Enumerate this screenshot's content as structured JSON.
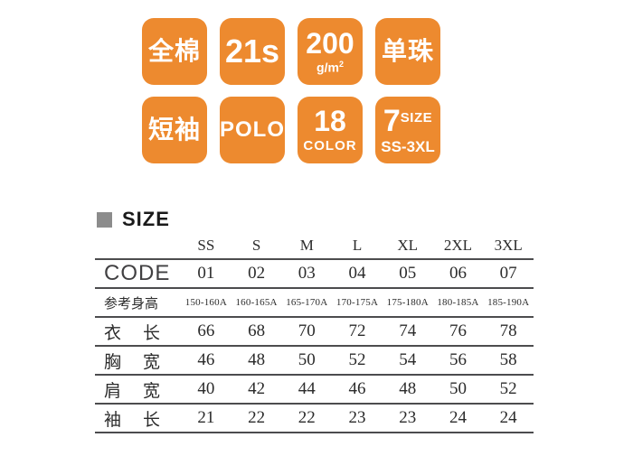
{
  "page": {
    "background": "#ffffff",
    "accent_orange": "#ED8A2F",
    "heading_square_gray": "#8c8c8c",
    "rule_color": "#4c4c4e"
  },
  "badges": [
    {
      "id": "fabric",
      "layout": "single-cjk",
      "main": "全棉"
    },
    {
      "id": "yarn-count",
      "layout": "single-21s",
      "main": "21s"
    },
    {
      "id": "weight",
      "layout": "stacked-sup",
      "main": "200",
      "sub": "g/m",
      "sub_sup": "2"
    },
    {
      "id": "stitch",
      "layout": "single-cjk",
      "main": "单珠"
    },
    {
      "id": "sleeve",
      "layout": "single-cjk",
      "main": "短袖"
    },
    {
      "id": "style",
      "layout": "single-polo",
      "main": "POLO"
    },
    {
      "id": "colors",
      "layout": "stacked",
      "main": "18",
      "sub": "COLOR"
    },
    {
      "id": "sizes",
      "layout": "seven",
      "main": "7",
      "side": "SIZE",
      "sub": "SS-3XL"
    }
  ],
  "size_section": {
    "title": "SIZE",
    "table": {
      "columns": [
        "SS",
        "S",
        "M",
        "L",
        "XL",
        "2XL",
        "3XL"
      ],
      "rows": [
        {
          "style": "code",
          "label": "CODE",
          "values": [
            "01",
            "02",
            "03",
            "04",
            "05",
            "06",
            "07"
          ]
        },
        {
          "style": "height",
          "label": "参考身高",
          "values": [
            "150-160A",
            "160-165A",
            "165-170A",
            "170-175A",
            "175-180A",
            "180-185A",
            "185-190A"
          ]
        },
        {
          "style": "measure",
          "label": "衣长",
          "values": [
            "66",
            "68",
            "70",
            "72",
            "74",
            "76",
            "78"
          ]
        },
        {
          "style": "measure",
          "label": "胸宽",
          "values": [
            "46",
            "48",
            "50",
            "52",
            "54",
            "56",
            "58"
          ]
        },
        {
          "style": "measure",
          "label": "肩宽",
          "values": [
            "40",
            "42",
            "44",
            "46",
            "48",
            "50",
            "52"
          ]
        },
        {
          "style": "measure",
          "label": "袖长",
          "values": [
            "21",
            "22",
            "22",
            "23",
            "23",
            "24",
            "24"
          ]
        }
      ]
    }
  }
}
